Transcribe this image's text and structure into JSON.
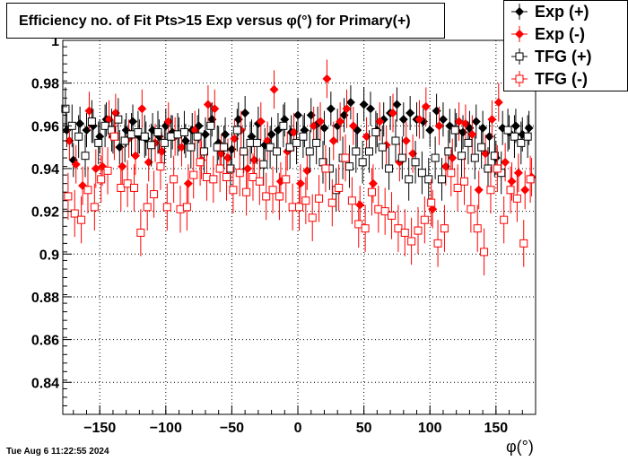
{
  "title": "Efficiency no. of Fit Pts>15 Exp versus φ(°) for Primary(+)",
  "timestamp": "Tue Aug  6 11:22:55 2024",
  "legend": {
    "items": [
      {
        "label": "Exp (+)",
        "color": "#000000",
        "marker": "filled-diamond"
      },
      {
        "label": "Exp (-)",
        "color": "#ff0000",
        "marker": "filled-diamond"
      },
      {
        "label": "TFG (+)",
        "color": "#000000",
        "marker": "open-square"
      },
      {
        "label": "TFG (-)",
        "color": "#ff0000",
        "marker": "open-square"
      }
    ]
  },
  "chart_data": {
    "type": "scatter",
    "title": "Efficiency no. of Fit Pts>15 Exp versus φ(°) for Primary(+)",
    "xlabel": "φ(°)",
    "ylabel": "",
    "xlim": [
      -178,
      180
    ],
    "ylim": [
      0.825,
      1.0
    ],
    "x_ticks": [
      -150,
      -100,
      -50,
      0,
      50,
      100,
      150
    ],
    "x_tick_labels": [
      "−150",
      "−100",
      "−50",
      "0",
      "50",
      "100",
      "150"
    ],
    "y_ticks": [
      0.84,
      0.86,
      0.88,
      0.9,
      0.92,
      0.94,
      0.96,
      0.98,
      1.0
    ],
    "y_tick_labels": [
      "0.84",
      "0.86",
      "0.88",
      "0.9",
      "0.92",
      "0.94",
      "0.96",
      "0.98",
      "1"
    ],
    "grid": true,
    "legend_position": "top-right",
    "series": [
      {
        "name": "Exp (+)",
        "color": "#000000",
        "marker": "filled-diamond",
        "x": [
          -175,
          -170,
          -165,
          -160,
          -155,
          -150,
          -145,
          -140,
          -135,
          -130,
          -125,
          -120,
          -115,
          -110,
          -105,
          -100,
          -95,
          -90,
          -85,
          -80,
          -75,
          -70,
          -65,
          -60,
          -55,
          -50,
          -45,
          -40,
          -35,
          -30,
          -25,
          -20,
          -15,
          -10,
          -5,
          0,
          5,
          10,
          15,
          20,
          25,
          30,
          35,
          40,
          45,
          50,
          55,
          60,
          65,
          70,
          75,
          80,
          85,
          90,
          95,
          100,
          105,
          110,
          115,
          120,
          125,
          130,
          135,
          140,
          145,
          150,
          155,
          160,
          165,
          170,
          175
        ],
        "y": [
          0.958,
          0.944,
          0.961,
          0.958,
          0.96,
          0.955,
          0.963,
          0.955,
          0.95,
          0.958,
          0.962,
          0.955,
          0.954,
          0.958,
          0.955,
          0.96,
          0.957,
          0.956,
          0.953,
          0.958,
          0.96,
          0.956,
          0.963,
          0.952,
          0.956,
          0.949,
          0.963,
          0.966,
          0.955,
          0.961,
          0.951,
          0.956,
          0.958,
          0.963,
          0.957,
          0.965,
          0.958,
          0.965,
          0.961,
          0.959,
          0.968,
          0.96,
          0.965,
          0.971,
          0.958,
          0.97,
          0.968,
          0.958,
          0.963,
          0.966,
          0.97,
          0.963,
          0.966,
          0.963,
          0.962,
          0.958,
          0.967,
          0.963,
          0.96,
          0.958,
          0.957,
          0.959,
          0.962,
          0.959,
          0.955,
          0.945,
          0.959,
          0.957,
          0.96,
          0.956,
          0.959
        ],
        "err": [
          0.008,
          0.008,
          0.008,
          0.008,
          0.008,
          0.008,
          0.008,
          0.008,
          0.008,
          0.008,
          0.008,
          0.008,
          0.008,
          0.008,
          0.008,
          0.008,
          0.008,
          0.008,
          0.008,
          0.008,
          0.008,
          0.008,
          0.008,
          0.008,
          0.008,
          0.008,
          0.008,
          0.008,
          0.008,
          0.008,
          0.008,
          0.008,
          0.008,
          0.008,
          0.008,
          0.008,
          0.008,
          0.008,
          0.008,
          0.008,
          0.008,
          0.008,
          0.008,
          0.008,
          0.008,
          0.008,
          0.008,
          0.008,
          0.008,
          0.008,
          0.008,
          0.008,
          0.008,
          0.008,
          0.008,
          0.008,
          0.008,
          0.008,
          0.008,
          0.008,
          0.008,
          0.008,
          0.008,
          0.008,
          0.008,
          0.008,
          0.008,
          0.008,
          0.008,
          0.008,
          0.008
        ]
      },
      {
        "name": "Exp (-)",
        "color": "#ff0000",
        "marker": "filled-diamond",
        "x": [
          -173,
          -168,
          -163,
          -158,
          -153,
          -148,
          -143,
          -138,
          -133,
          -128,
          -123,
          -118,
          -113,
          -108,
          -103,
          -98,
          -93,
          -88,
          -83,
          -78,
          -73,
          -68,
          -63,
          -58,
          -53,
          -48,
          -43,
          -38,
          -33,
          -28,
          -23,
          -18,
          -13,
          -8,
          -3,
          2,
          7,
          12,
          17,
          22,
          27,
          32,
          37,
          42,
          47,
          52,
          57,
          62,
          67,
          72,
          77,
          82,
          87,
          92,
          97,
          102,
          107,
          112,
          117,
          122,
          127,
          132,
          137,
          142,
          147,
          152,
          157,
          162,
          167,
          172,
          177
        ],
        "y": [
          0.953,
          0.942,
          0.932,
          0.967,
          0.94,
          0.941,
          0.963,
          0.966,
          0.941,
          0.954,
          0.946,
          0.968,
          0.943,
          0.952,
          0.948,
          0.962,
          0.955,
          0.95,
          0.933,
          0.958,
          0.944,
          0.97,
          0.968,
          0.947,
          0.945,
          0.954,
          0.958,
          0.94,
          0.944,
          0.962,
          0.953,
          0.977,
          0.934,
          0.948,
          0.957,
          0.933,
          0.939,
          0.96,
          0.962,
          0.982,
          0.953,
          0.962,
          0.968,
          0.96,
          0.923,
          0.955,
          0.933,
          0.962,
          0.951,
          0.966,
          0.943,
          0.953,
          0.947,
          0.963,
          0.969,
          0.921,
          0.96,
          0.941,
          0.945,
          0.962,
          0.961,
          0.956,
          0.93,
          0.947,
          0.963,
          0.971,
          0.943,
          0.934,
          0.938,
          0.93,
          0.936
        ],
        "err": [
          0.009,
          0.009,
          0.009,
          0.009,
          0.009,
          0.009,
          0.009,
          0.009,
          0.009,
          0.009,
          0.009,
          0.009,
          0.009,
          0.009,
          0.009,
          0.009,
          0.009,
          0.009,
          0.009,
          0.009,
          0.009,
          0.009,
          0.009,
          0.009,
          0.009,
          0.009,
          0.009,
          0.009,
          0.009,
          0.009,
          0.009,
          0.009,
          0.009,
          0.009,
          0.009,
          0.009,
          0.009,
          0.009,
          0.009,
          0.009,
          0.009,
          0.009,
          0.009,
          0.009,
          0.009,
          0.009,
          0.009,
          0.009,
          0.009,
          0.009,
          0.009,
          0.009,
          0.009,
          0.009,
          0.009,
          0.009,
          0.009,
          0.009,
          0.009,
          0.009,
          0.009,
          0.009,
          0.009,
          0.009,
          0.009,
          0.009,
          0.009,
          0.009,
          0.009,
          0.009,
          0.009
        ]
      },
      {
        "name": "TFG (+)",
        "color": "#000000",
        "marker": "open-square",
        "x": [
          -176,
          -171,
          -166,
          -161,
          -156,
          -151,
          -146,
          -141,
          -136,
          -131,
          -126,
          -121,
          -116,
          -111,
          -106,
          -101,
          -96,
          -91,
          -86,
          -81,
          -76,
          -71,
          -66,
          -61,
          -56,
          -51,
          -46,
          -41,
          -36,
          -31,
          -26,
          -21,
          -16,
          -11,
          -6,
          -1,
          4,
          9,
          14,
          19,
          24,
          29,
          34,
          39,
          44,
          49,
          54,
          59,
          64,
          69,
          74,
          79,
          84,
          89,
          94,
          99,
          104,
          109,
          114,
          119,
          124,
          129,
          134,
          139,
          144,
          149,
          154,
          159,
          164,
          169,
          174
        ],
        "y": [
          0.968,
          0.96,
          0.955,
          0.946,
          0.962,
          0.952,
          0.96,
          0.958,
          0.963,
          0.953,
          0.956,
          0.957,
          0.955,
          0.951,
          0.957,
          0.952,
          0.955,
          0.956,
          0.957,
          0.95,
          0.955,
          0.948,
          0.96,
          0.95,
          0.95,
          0.94,
          0.958,
          0.948,
          0.952,
          0.952,
          0.942,
          0.95,
          0.948,
          0.96,
          0.95,
          0.952,
          0.955,
          0.948,
          0.952,
          0.943,
          0.94,
          0.93,
          0.945,
          0.941,
          0.948,
          0.943,
          0.948,
          0.957,
          0.95,
          0.94,
          0.953,
          0.945,
          0.935,
          0.943,
          0.938,
          0.935,
          0.945,
          0.935,
          0.948,
          0.958,
          0.946,
          0.952,
          0.945,
          0.95,
          0.94,
          0.946,
          0.938,
          0.958,
          0.955,
          0.952,
          0.955
        ],
        "err": [
          0.01,
          0.01,
          0.01,
          0.01,
          0.01,
          0.01,
          0.01,
          0.01,
          0.01,
          0.01,
          0.01,
          0.01,
          0.01,
          0.01,
          0.01,
          0.01,
          0.01,
          0.01,
          0.01,
          0.01,
          0.01,
          0.01,
          0.01,
          0.01,
          0.01,
          0.01,
          0.01,
          0.01,
          0.01,
          0.01,
          0.01,
          0.01,
          0.01,
          0.01,
          0.01,
          0.01,
          0.01,
          0.01,
          0.01,
          0.01,
          0.01,
          0.01,
          0.01,
          0.01,
          0.01,
          0.01,
          0.01,
          0.01,
          0.01,
          0.01,
          0.01,
          0.01,
          0.01,
          0.01,
          0.01,
          0.01,
          0.01,
          0.01,
          0.01,
          0.01,
          0.01,
          0.01,
          0.01,
          0.01,
          0.01,
          0.01,
          0.01,
          0.01,
          0.01,
          0.01,
          0.01
        ]
      },
      {
        "name": "TFG (-)",
        "color": "#ff0000",
        "marker": "open-square",
        "x": [
          -174,
          -169,
          -164,
          -159,
          -154,
          -149,
          -144,
          -139,
          -134,
          -129,
          -124,
          -119,
          -114,
          -109,
          -104,
          -99,
          -94,
          -89,
          -84,
          -79,
          -74,
          -69,
          -64,
          -59,
          -54,
          -49,
          -44,
          -39,
          -34,
          -29,
          -24,
          -19,
          -14,
          -9,
          -4,
          1,
          6,
          11,
          16,
          21,
          26,
          31,
          36,
          41,
          46,
          51,
          56,
          61,
          66,
          71,
          76,
          81,
          86,
          91,
          96,
          101,
          106,
          111,
          116,
          121,
          126,
          131,
          136,
          141,
          146,
          151,
          156,
          161,
          166,
          171,
          176
        ],
        "y": [
          0.927,
          0.919,
          0.916,
          0.93,
          0.922,
          0.935,
          0.939,
          0.955,
          0.931,
          0.933,
          0.931,
          0.91,
          0.922,
          0.928,
          0.941,
          0.922,
          0.935,
          0.921,
          0.922,
          0.937,
          0.943,
          0.936,
          0.935,
          0.94,
          0.936,
          0.93,
          0.938,
          0.929,
          0.936,
          0.934,
          0.927,
          0.93,
          0.927,
          0.935,
          0.922,
          0.922,
          0.925,
          0.917,
          0.926,
          0.94,
          0.924,
          0.931,
          0.945,
          0.925,
          0.914,
          0.912,
          0.929,
          0.921,
          0.92,
          0.918,
          0.912,
          0.91,
          0.906,
          0.911,
          0.916,
          0.924,
          0.905,
          0.912,
          0.938,
          0.931,
          0.934,
          0.921,
          0.912,
          0.901,
          0.93,
          0.94,
          0.916,
          0.93,
          0.926,
          0.905,
          0.935
        ],
        "err": [
          0.011,
          0.011,
          0.011,
          0.011,
          0.011,
          0.011,
          0.011,
          0.011,
          0.011,
          0.011,
          0.011,
          0.011,
          0.011,
          0.011,
          0.011,
          0.011,
          0.011,
          0.011,
          0.011,
          0.011,
          0.011,
          0.011,
          0.011,
          0.011,
          0.011,
          0.011,
          0.011,
          0.011,
          0.011,
          0.011,
          0.011,
          0.011,
          0.011,
          0.011,
          0.011,
          0.011,
          0.011,
          0.011,
          0.011,
          0.011,
          0.011,
          0.011,
          0.011,
          0.011,
          0.011,
          0.011,
          0.011,
          0.011,
          0.011,
          0.011,
          0.011,
          0.011,
          0.011,
          0.011,
          0.011,
          0.011,
          0.011,
          0.011,
          0.011,
          0.011,
          0.011,
          0.011,
          0.011,
          0.011,
          0.011,
          0.011,
          0.011,
          0.011,
          0.011,
          0.011,
          0.011
        ]
      }
    ]
  }
}
